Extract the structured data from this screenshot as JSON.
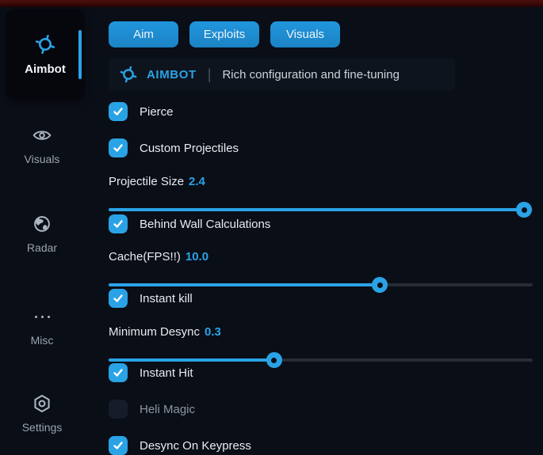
{
  "theme": {
    "accent": "#2aa3e6",
    "tab_blue": "#1f8ccd",
    "background": "#0a0e17",
    "top_strip_red": "#3a0908",
    "unchecked_box": "#161c29"
  },
  "sidebar": {
    "items": [
      {
        "label": "Aimbot",
        "icon": "crosshair-icon",
        "active": true
      },
      {
        "label": "Visuals",
        "icon": "eye-icon",
        "active": false
      },
      {
        "label": "Radar",
        "icon": "globe-icon",
        "active": false
      },
      {
        "label": "Misc",
        "icon": "ellipsis-icon",
        "active": false
      },
      {
        "label": "Settings",
        "icon": "gear-icon",
        "active": false
      }
    ]
  },
  "tabs": [
    {
      "label": "Aim"
    },
    {
      "label": "Exploits"
    },
    {
      "label": "Visuals"
    }
  ],
  "header": {
    "title": "AIMBOT",
    "separator": "|",
    "subtitle": "Rich configuration and fine-tuning"
  },
  "controls": [
    {
      "type": "checkbox",
      "label": "Pierce",
      "checked": true
    },
    {
      "type": "checkbox",
      "label": "Custom Projectiles",
      "checked": true
    },
    {
      "type": "slider",
      "label": "Projectile Size",
      "value": "2.4",
      "percent": 98
    },
    {
      "type": "checkbox",
      "label": "Behind Wall Calculations",
      "checked": true
    },
    {
      "type": "slider",
      "label": "Cache(FPS!!)",
      "value": "10.0",
      "percent": 64
    },
    {
      "type": "checkbox",
      "label": "Instant kill",
      "checked": true
    },
    {
      "type": "slider",
      "label": "Minimum Desync",
      "value": "0.3",
      "percent": 39
    },
    {
      "type": "checkbox",
      "label": "Instant Hit",
      "checked": true
    },
    {
      "type": "checkbox",
      "label": "Heli Magic",
      "checked": false
    },
    {
      "type": "checkbox",
      "label": "Desync On Keypress",
      "checked": true
    }
  ]
}
